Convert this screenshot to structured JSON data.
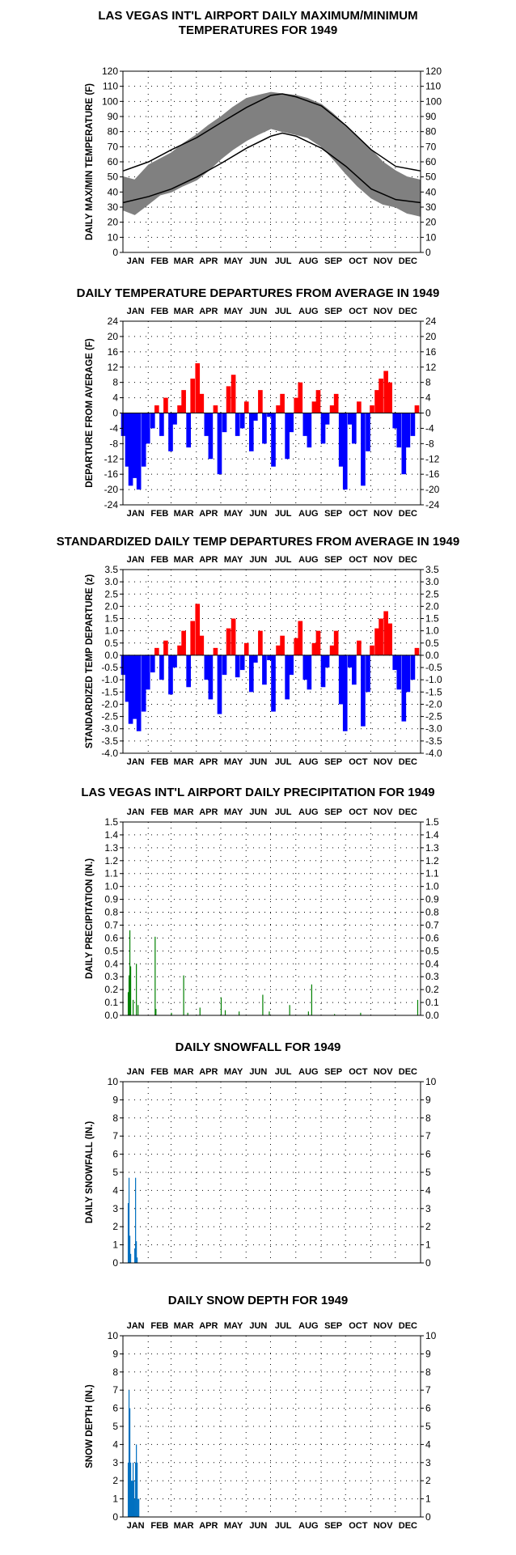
{
  "months": [
    "JAN",
    "FEB",
    "MAR",
    "APR",
    "MAY",
    "JUN",
    "JUL",
    "AUG",
    "SEP",
    "OCT",
    "NOV",
    "DEC"
  ],
  "colors": {
    "max_temp": "#808080",
    "normal_line": "#000000",
    "above": "#ff0000",
    "below": "#0000ff",
    "precip": "#008000",
    "snow": "#0070c0"
  },
  "chart_data": [
    {
      "id": "temps",
      "type": "area",
      "title": [
        "LAS VEGAS INT'L AIRPORT DAILY MAXIMUM/MINIMUM",
        "TEMPERATURES FOR 1949"
      ],
      "ylabel": "DAILY MAX/MIN TEMPERATURE (F)",
      "ylim": [
        0,
        120
      ],
      "yticks": [
        "0",
        "10",
        "20",
        "30",
        "40",
        "50",
        "60",
        "70",
        "80",
        "90",
        "100",
        "110",
        "120"
      ],
      "grid": true,
      "series": [
        {
          "x": [
            1,
            15,
            32,
            46,
            60,
            74,
            91,
            105,
            121,
            135,
            152,
            166,
            182,
            196,
            213,
            227,
            244,
            258,
            274,
            288,
            305,
            319,
            335,
            349,
            365
          ],
          "max": [
            50,
            48,
            58,
            62,
            66,
            72,
            78,
            84,
            90,
            96,
            102,
            104,
            106,
            105,
            104,
            102,
            98,
            92,
            84,
            76,
            68,
            60,
            54,
            50,
            48
          ],
          "min": [
            28,
            25,
            32,
            38,
            40,
            44,
            48,
            54,
            62,
            68,
            74,
            78,
            82,
            80,
            78,
            76,
            70,
            62,
            52,
            44,
            36,
            32,
            30,
            26,
            24
          ]
        },
        {
          "x": [
            1,
            32,
            60,
            91,
            121,
            152,
            182,
            196,
            213,
            244,
            274,
            305,
            335,
            365
          ],
          "values": [
            54,
            60,
            68,
            76,
            86,
            96,
            104,
            105,
            103,
            97,
            84,
            68,
            57,
            54
          ]
        },
        {
          "x": [
            1,
            32,
            60,
            91,
            121,
            152,
            182,
            196,
            213,
            244,
            274,
            305,
            335,
            365
          ],
          "values": [
            33,
            37,
            42,
            50,
            59,
            69,
            77,
            79,
            77,
            69,
            57,
            42,
            35,
            33
          ]
        }
      ]
    },
    {
      "id": "departures",
      "type": "bar",
      "title": [
        "DAILY TEMPERATURE DEPARTURES FROM AVERAGE IN 1949"
      ],
      "ylabel": "DEPARTURE FROM AVERAGE (F)",
      "ylim": [
        -24,
        24
      ],
      "yticks": [
        "-24",
        "-20",
        "-16",
        "-12",
        "-8",
        "-4",
        "0",
        "4",
        "8",
        "12",
        "16",
        "20",
        "24"
      ],
      "yticks_right": [
        "-24",
        "-20",
        "-16",
        "-12",
        "-8",
        "-4",
        "0",
        "4",
        "8",
        "12",
        "16",
        "20",
        "24"
      ],
      "grid": true,
      "x": [
        1,
        6,
        10,
        15,
        20,
        26,
        31,
        37,
        42,
        48,
        53,
        59,
        64,
        70,
        75,
        81,
        86,
        92,
        97,
        103,
        108,
        114,
        119,
        125,
        130,
        136,
        141,
        147,
        152,
        158,
        163,
        169,
        174,
        180,
        185,
        191,
        196,
        202,
        207,
        213,
        218,
        224,
        229,
        235,
        240,
        246,
        251,
        257,
        262,
        268,
        273,
        279,
        284,
        290,
        295,
        301,
        306,
        312,
        317,
        323,
        328,
        334,
        339,
        345,
        350,
        356,
        361
      ],
      "values": [
        -6,
        -14,
        -19,
        -17,
        -20,
        -14,
        -8,
        -4,
        2,
        -6,
        4,
        -10,
        -3,
        2,
        6,
        -9,
        9,
        13,
        5,
        -6,
        -12,
        2,
        -16,
        -5,
        7,
        10,
        -6,
        -4,
        3,
        -10,
        -2,
        6,
        -8,
        -1,
        -14,
        2,
        5,
        -12,
        -5,
        4,
        8,
        -6,
        -9,
        3,
        6,
        -8,
        -3,
        2,
        5,
        -14,
        -20,
        -3,
        -8,
        3,
        -19,
        -10,
        2,
        6,
        9,
        11,
        8,
        -4,
        -9,
        -16,
        -9,
        -6,
        2
      ]
    },
    {
      "id": "standardized",
      "type": "bar",
      "title": [
        "STANDARDIZED DAILY TEMP DEPARTURES FROM AVERAGE IN 1949"
      ],
      "ylabel": "STANDARDIZED TEMP DEPARTURE (z)",
      "ylim": [
        -4,
        3.5
      ],
      "yticks": [
        "-4.0",
        "-3.5",
        "-3.0",
        "-2.5",
        "-2.0",
        "-1.5",
        "-1.0",
        "-0.5",
        "0.0",
        "0.5",
        "1.0",
        "1.5",
        "2.0",
        "2.5",
        "3.0",
        "3.5"
      ],
      "yticks_right": [
        "-4.0",
        "-3.5",
        "-3.0",
        "-2.5",
        "-2.0",
        "-1.5",
        "-1.0",
        "-0.5",
        "0.0",
        "0.5",
        "1.0",
        "1.5",
        "2.0",
        "2.5",
        "3.0",
        "3.5"
      ],
      "grid": true,
      "x": [
        1,
        6,
        10,
        15,
        20,
        26,
        31,
        37,
        42,
        48,
        53,
        59,
        64,
        70,
        75,
        81,
        86,
        92,
        97,
        103,
        108,
        114,
        119,
        125,
        130,
        136,
        141,
        147,
        152,
        158,
        163,
        169,
        174,
        180,
        185,
        191,
        196,
        202,
        207,
        213,
        218,
        224,
        229,
        235,
        240,
        246,
        251,
        257,
        262,
        268,
        273,
        279,
        284,
        290,
        295,
        301,
        306,
        312,
        317,
        323,
        328,
        334,
        339,
        345,
        350,
        356,
        361
      ],
      "values": [
        -0.8,
        -1.9,
        -2.8,
        -2.6,
        -3.1,
        -2.3,
        -1.4,
        -0.7,
        0.3,
        -1,
        0.6,
        -1.6,
        -0.5,
        0.4,
        1,
        -1.3,
        1.4,
        2.1,
        0.8,
        -1,
        -1.8,
        0.3,
        -2.4,
        -0.8,
        1.1,
        1.5,
        -0.9,
        -0.6,
        0.5,
        -1.5,
        -0.3,
        1,
        -1.2,
        -0.2,
        -2.3,
        0.4,
        0.8,
        -1.8,
        -0.8,
        0.7,
        1.4,
        -1,
        -1.4,
        0.5,
        1,
        -1.3,
        -0.5,
        0.4,
        1,
        -2,
        -3.1,
        -0.5,
        -1.2,
        0.6,
        -2.9,
        -1.5,
        0.4,
        1.1,
        1.5,
        1.8,
        1.3,
        -0.6,
        -1.4,
        -2.7,
        -1.5,
        -1,
        0.3
      ]
    },
    {
      "id": "precip",
      "type": "bar",
      "title": [
        "LAS VEGAS INT'L AIRPORT DAILY PRECIPITATION FOR 1949"
      ],
      "ylabel": "DAILY PRECIPITATION (IN.)",
      "ylim": [
        0,
        1.5
      ],
      "yticks": [
        "0.0",
        "0.1",
        "0.2",
        "0.3",
        "0.4",
        "0.5",
        "0.6",
        "0.7",
        "0.8",
        "0.9",
        "1.0",
        "1.1",
        "1.2",
        "1.3",
        "1.4",
        "1.5"
      ],
      "grid": true,
      "x": [
        7,
        8,
        9,
        10,
        13,
        17,
        19,
        40,
        41,
        60,
        75,
        80,
        95,
        121,
        126,
        143,
        172,
        180,
        205,
        228,
        232,
        260,
        292,
        362
      ],
      "values": [
        0.18,
        0.31,
        0.66,
        0.38,
        0.12,
        0.4,
        0.08,
        0.61,
        0.05,
        0.02,
        0.31,
        0.02,
        0.06,
        0.14,
        0.04,
        0.03,
        0.16,
        0.03,
        0.08,
        0.03,
        0.24,
        0.01,
        0.02,
        0.12
      ]
    },
    {
      "id": "snowfall",
      "type": "bar",
      "title": [
        "DAILY SNOWFALL FOR 1949"
      ],
      "ylabel": "DAILY SNOWFALL (IN.)",
      "ylim": [
        0,
        10
      ],
      "yticks": [
        "0",
        "1",
        "2",
        "3",
        "4",
        "5",
        "6",
        "7",
        "8",
        "9",
        "10"
      ],
      "grid": true,
      "x": [
        7,
        8,
        9,
        10,
        15,
        16,
        17,
        18
      ],
      "values": [
        3.3,
        4.7,
        1.5,
        0.5,
        0.8,
        4.7,
        1.2,
        0.3
      ]
    },
    {
      "id": "snowdepth",
      "type": "bar",
      "title": [
        "DAILY SNOW DEPTH FOR 1949"
      ],
      "ylabel": "SNOW DEPTH (IN.)",
      "ylim": [
        0,
        10
      ],
      "yticks": [
        "0",
        "1",
        "2",
        "3",
        "4",
        "5",
        "6",
        "7",
        "8",
        "9",
        "10"
      ],
      "grid": true,
      "x": [
        7,
        8,
        9,
        10,
        11,
        12,
        13,
        14,
        15,
        16,
        17,
        18,
        19,
        20
      ],
      "values": [
        3,
        7,
        6,
        3,
        2,
        2,
        3,
        2,
        1,
        3,
        4,
        3,
        1,
        1
      ]
    }
  ]
}
